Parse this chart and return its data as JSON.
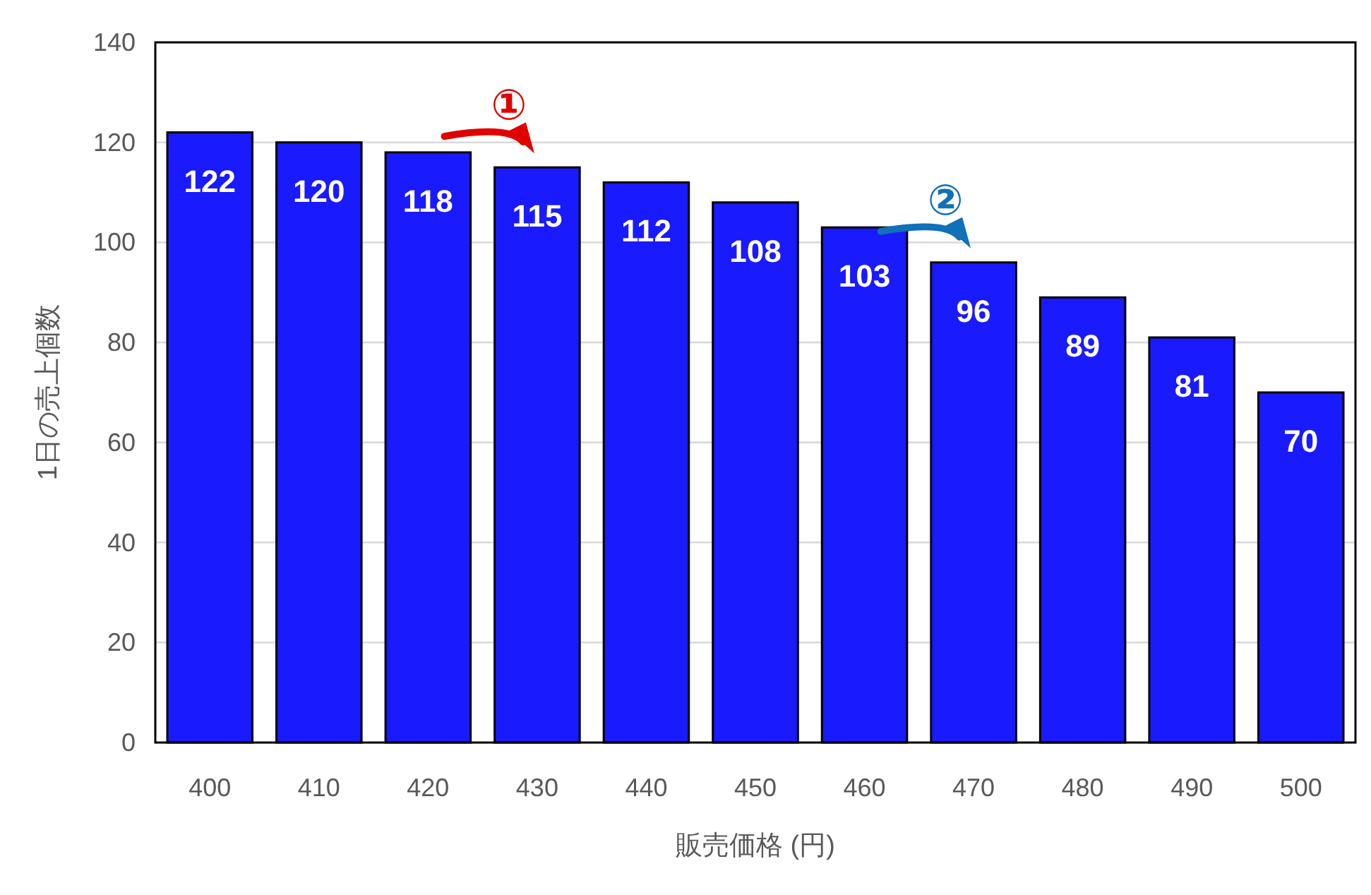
{
  "chart_data": {
    "type": "bar",
    "xlabel": "販売価格 (円)",
    "ylabel": "1日の売上個数",
    "categories": [
      "400",
      "410",
      "420",
      "430",
      "440",
      "450",
      "460",
      "470",
      "480",
      "490",
      "500"
    ],
    "values": [
      122,
      120,
      118,
      115,
      112,
      108,
      103,
      96,
      89,
      81,
      70
    ],
    "color": "#1a1aff",
    "ylim": [
      0,
      140
    ],
    "yticks": [
      0,
      20,
      40,
      60,
      80,
      100,
      120,
      140
    ],
    "grid": "y",
    "data_labels": true,
    "annotations": [
      {
        "text": "①",
        "x": "430",
        "y": 115
      },
      {
        "text": "②",
        "x": "470",
        "y": 96
      }
    ]
  }
}
